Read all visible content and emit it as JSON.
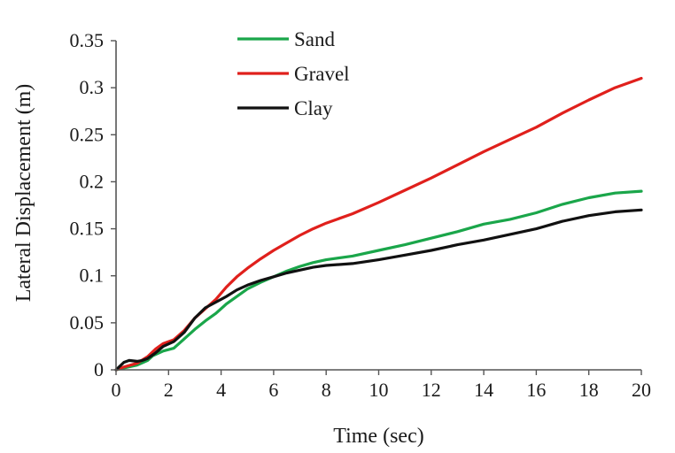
{
  "chart_data": {
    "type": "line",
    "title": "",
    "xlabel": "Time (sec)",
    "ylabel": "Lateral Displacement (m)",
    "xlim": [
      0,
      20
    ],
    "ylim": [
      0,
      0.35
    ],
    "xticks": [
      0,
      2,
      4,
      6,
      8,
      10,
      12,
      14,
      16,
      18,
      20
    ],
    "yticks": [
      0,
      0.05,
      0.1,
      0.15,
      0.2,
      0.25,
      0.3,
      0.35
    ],
    "xtick_labels": [
      "0",
      "2",
      "4",
      "6",
      "8",
      "10",
      "12",
      "14",
      "16",
      "18",
      "20"
    ],
    "ytick_labels": [
      "0",
      "0.05",
      "0.1",
      "0.15",
      "0.2",
      "0.25",
      "0.3",
      "0.35"
    ],
    "grid": false,
    "legend_position": "top-center",
    "series": [
      {
        "name": "Sand",
        "color": "#1aa64a",
        "x": [
          0,
          0.3,
          0.8,
          1.2,
          1.4,
          1.8,
          2.2,
          2.6,
          3.0,
          3.4,
          3.8,
          4.2,
          4.6,
          5.0,
          5.5,
          6.0,
          6.5,
          7.0,
          7.5,
          8.0,
          9.0,
          10.0,
          11.0,
          12.0,
          13.0,
          14.0,
          15.0,
          16.0,
          17.0,
          18.0,
          19.0,
          20.0
        ],
        "y": [
          0,
          0.002,
          0.005,
          0.01,
          0.015,
          0.02,
          0.023,
          0.033,
          0.043,
          0.052,
          0.06,
          0.07,
          0.078,
          0.086,
          0.093,
          0.099,
          0.105,
          0.11,
          0.114,
          0.117,
          0.121,
          0.127,
          0.133,
          0.14,
          0.147,
          0.155,
          0.16,
          0.167,
          0.176,
          0.183,
          0.188,
          0.19
        ]
      },
      {
        "name": "Gravel",
        "color": "#e0201c",
        "x": [
          0,
          0.3,
          0.8,
          1.2,
          1.5,
          1.8,
          2.2,
          2.6,
          3.0,
          3.4,
          3.8,
          4.2,
          4.6,
          5.0,
          5.5,
          6.0,
          6.5,
          7.0,
          7.5,
          8.0,
          9.0,
          10.0,
          11.0,
          12.0,
          13.0,
          14.0,
          15.0,
          16.0,
          17.0,
          18.0,
          19.0,
          20.0
        ],
        "y": [
          0,
          0.003,
          0.007,
          0.014,
          0.022,
          0.028,
          0.032,
          0.042,
          0.055,
          0.065,
          0.075,
          0.088,
          0.099,
          0.108,
          0.118,
          0.127,
          0.135,
          0.143,
          0.15,
          0.156,
          0.166,
          0.178,
          0.191,
          0.204,
          0.218,
          0.232,
          0.245,
          0.258,
          0.273,
          0.287,
          0.3,
          0.31
        ]
      },
      {
        "name": "Clay",
        "color": "#111111",
        "x": [
          0,
          0.3,
          0.5,
          0.8,
          1.0,
          1.2,
          1.5,
          1.8,
          2.2,
          2.6,
          3.0,
          3.4,
          3.8,
          4.2,
          4.6,
          5.0,
          5.5,
          6.0,
          6.5,
          7.0,
          7.5,
          8.0,
          9.0,
          10.0,
          11.0,
          12.0,
          13.0,
          14.0,
          15.0,
          16.0,
          17.0,
          18.0,
          19.0,
          20.0
        ],
        "y": [
          0,
          0.008,
          0.01,
          0.009,
          0.01,
          0.012,
          0.018,
          0.025,
          0.03,
          0.04,
          0.055,
          0.066,
          0.072,
          0.078,
          0.085,
          0.09,
          0.095,
          0.099,
          0.103,
          0.106,
          0.109,
          0.111,
          0.113,
          0.117,
          0.122,
          0.127,
          0.133,
          0.138,
          0.144,
          0.15,
          0.158,
          0.164,
          0.168,
          0.17
        ]
      }
    ]
  }
}
